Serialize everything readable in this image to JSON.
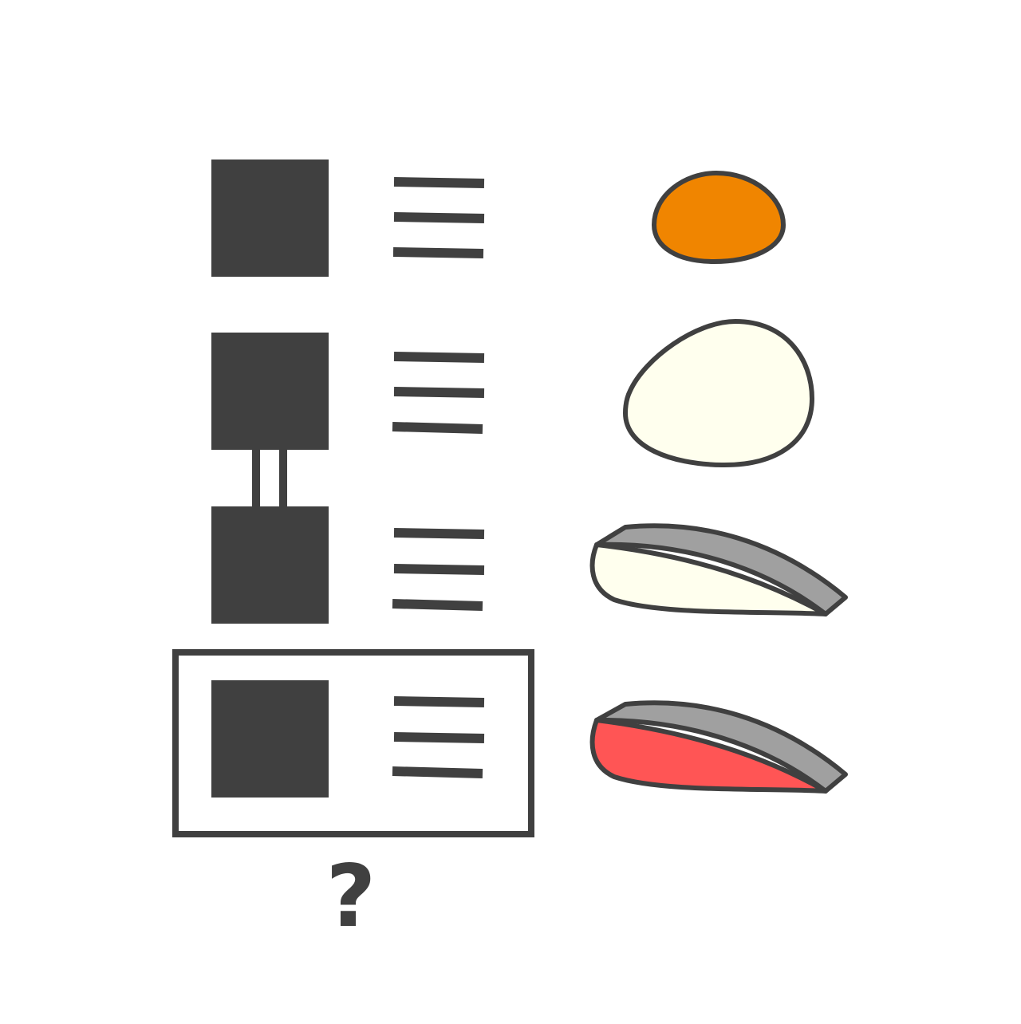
{
  "colors": {
    "ink": "#404040",
    "orange": "#F08500",
    "cream": "#FFFFEE",
    "skin_gray": "#A0A0A0",
    "salmon_red": "#FF5555",
    "background": "#FFFFFF"
  },
  "rows": [
    {
      "glyph": "single-square",
      "item": "egg-yolk-icon",
      "highlighted": false
    },
    {
      "glyph": "linked-square-top",
      "item": "egg-white-icon",
      "highlighted": false
    },
    {
      "glyph": "linked-square-bottom",
      "item": "fish-fillet-white-icon",
      "highlighted": false
    },
    {
      "glyph": "single-square",
      "item": "fish-fillet-red-icon",
      "highlighted": true
    }
  ],
  "question": {
    "text": "?"
  }
}
